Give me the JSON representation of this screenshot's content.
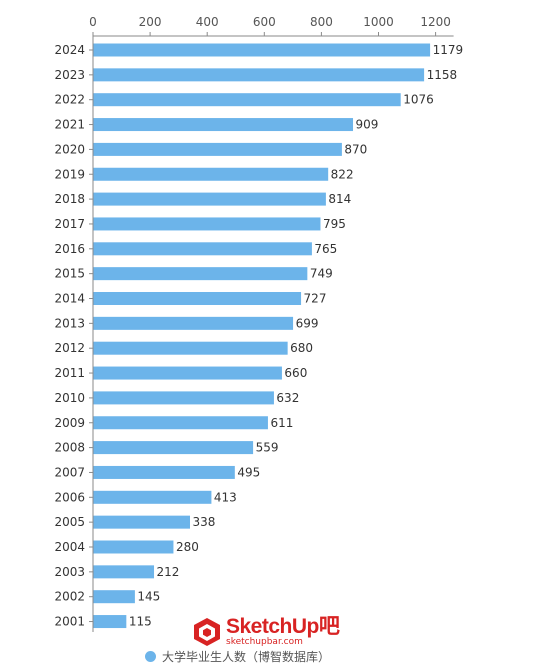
{
  "chart_data": {
    "type": "bar",
    "orientation": "horizontal",
    "categories": [
      "2024",
      "2023",
      "2022",
      "2021",
      "2020",
      "2019",
      "2018",
      "2017",
      "2016",
      "2015",
      "2014",
      "2013",
      "2012",
      "2011",
      "2010",
      "2009",
      "2008",
      "2007",
      "2006",
      "2005",
      "2004",
      "2003",
      "2002",
      "2001"
    ],
    "series": [
      {
        "name": "大学毕业生人数（博智数据库）",
        "values": [
          1179,
          1158,
          1076,
          909,
          870,
          822,
          814,
          795,
          765,
          749,
          727,
          699,
          680,
          660,
          632,
          611,
          559,
          495,
          413,
          338,
          280,
          212,
          145,
          115
        ]
      }
    ],
    "xticks": [
      0,
      200,
      400,
      600,
      800,
      1000,
      1200
    ],
    "xlim": [
      0,
      1200
    ],
    "grid": false,
    "x_axis_position": "top",
    "legend_position": "bottom",
    "bar_color": "#6cb4ea"
  },
  "legend": {
    "label": "大学毕业生人数（博智数据库）",
    "color": "#6cb4ea"
  },
  "watermark": {
    "title": "SketchUp吧",
    "sub": "sketchupbar.com"
  }
}
